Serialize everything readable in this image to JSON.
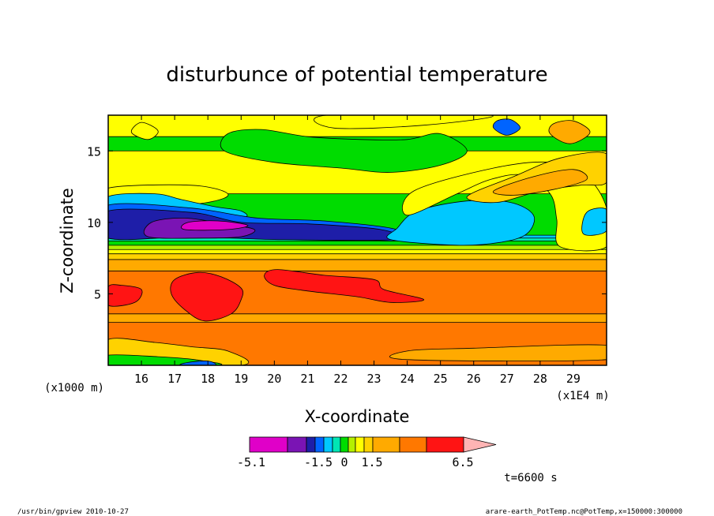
{
  "chart_data": {
    "type": "heatmap",
    "title": "disturbunce of potential temperature",
    "xlabel": "X-coordinate",
    "ylabel": "Z-coordinate",
    "x_unit": "(x1E4 m)",
    "y_unit": "(x1000 m)",
    "x_range": [
      15,
      30
    ],
    "y_range": [
      0,
      17.5
    ],
    "x_ticks": [
      "16",
      "17",
      "18",
      "19",
      "20",
      "21",
      "22",
      "23",
      "24",
      "25",
      "26",
      "27",
      "28",
      "29"
    ],
    "y_ticks": [
      "5",
      "10",
      "15"
    ],
    "colorbar": {
      "labels": [
        "-5.1",
        "-1.5",
        "0",
        "1.5",
        "6.5"
      ],
      "colors": [
        "#e000c8",
        "#7a14b4",
        "#1e1ea8",
        "#0064ff",
        "#00c8ff",
        "#00e6b4",
        "#00dc00",
        "#b4f000",
        "#ffff00",
        "#ffd200",
        "#ffaa00",
        "#ff7800",
        "#ff1414",
        "#ff7878",
        "#ffb4b4"
      ]
    },
    "time_label": "t=6600 s",
    "bands": [
      {
        "z": 0,
        "color": "#ff7800"
      },
      {
        "z": 3.0,
        "color": "#ffaa00"
      },
      {
        "z": 3.6,
        "color": "#ff7800"
      },
      {
        "z": 6.6,
        "color": "#ffaa00"
      },
      {
        "z": 7.4,
        "color": "#ffd200"
      },
      {
        "z": 7.8,
        "color": "#ffff00"
      },
      {
        "z": 8.1,
        "color": "#b4f000"
      },
      {
        "z": 8.4,
        "color": "#00dc00"
      },
      {
        "z": 8.7,
        "color": "#00e6b4"
      },
      {
        "z": 8.9,
        "color": "#00c8ff"
      },
      {
        "z": 9.1,
        "color": "#00dc00"
      },
      {
        "z": 12.0,
        "color": "#ffff00"
      },
      {
        "z": 15.0,
        "color": "#00dc00"
      },
      {
        "z": 16.0,
        "color": "#ffff00"
      }
    ],
    "regions": [
      {
        "name": "surface-yellow-layer",
        "color": "#ffd200",
        "pts": [
          [
            15,
            0
          ],
          [
            19,
            0
          ],
          [
            18.6,
            1.0
          ],
          [
            17.5,
            1.3
          ],
          [
            16.4,
            1.6
          ],
          [
            15,
            1.8
          ]
        ]
      },
      {
        "name": "surface-green-layer",
        "color": "#00dc00",
        "pts": [
          [
            15,
            0
          ],
          [
            18.3,
            0
          ],
          [
            17.6,
            0.4
          ],
          [
            16.5,
            0.6
          ],
          [
            15,
            0.7
          ]
        ]
      },
      {
        "name": "surface-blue-layer",
        "color": "#0064ff",
        "pts": [
          [
            17.2,
            0
          ],
          [
            18.2,
            0
          ],
          [
            18.0,
            0.3
          ],
          [
            17.4,
            0.2
          ]
        ]
      },
      {
        "name": "surface-orange-right",
        "color": "#ffaa00",
        "pts": [
          [
            24,
            0.4
          ],
          [
            30,
            0.4
          ],
          [
            30,
            1.4
          ],
          [
            26,
            1.2
          ],
          [
            24,
            1.0
          ]
        ]
      },
      {
        "name": "warm-core-left",
        "color": "#ff1414",
        "pts": [
          [
            15,
            4.2
          ],
          [
            15.8,
            4.4
          ],
          [
            16.0,
            5.3
          ],
          [
            15.4,
            5.6
          ],
          [
            15,
            5.5
          ]
        ]
      },
      {
        "name": "warm-core-center",
        "color": "#ff1414",
        "pts": [
          [
            17.9,
            3.1
          ],
          [
            18.7,
            3.6
          ],
          [
            19.0,
            4.6
          ],
          [
            19.0,
            5.4
          ],
          [
            18.4,
            6.2
          ],
          [
            17.7,
            6.5
          ],
          [
            17.0,
            6.0
          ],
          [
            16.9,
            5.0
          ],
          [
            17.3,
            3.9
          ]
        ]
      },
      {
        "name": "warm-core-east",
        "color": "#ff1414",
        "pts": [
          [
            20.1,
            6.7
          ],
          [
            21.5,
            6.3
          ],
          [
            23.0,
            6.0
          ],
          [
            23.3,
            5.3
          ],
          [
            24.5,
            4.6
          ],
          [
            23.5,
            4.4
          ],
          [
            22.5,
            4.8
          ],
          [
            21.0,
            5.2
          ],
          [
            20.0,
            5.6
          ],
          [
            19.7,
            6.3
          ]
        ]
      },
      {
        "name": "upper-yellow-west",
        "color": "#ffff00",
        "pts": [
          [
            15,
            11.2
          ],
          [
            16.2,
            11.0
          ],
          [
            18.0,
            11.4
          ],
          [
            18.6,
            12.0
          ],
          [
            17.5,
            12.6
          ],
          [
            15,
            12.4
          ]
        ]
      },
      {
        "name": "upper-cyan-west",
        "color": "#00c8ff",
        "pts": [
          [
            15,
            11.8
          ],
          [
            16.4,
            12.0
          ],
          [
            17.2,
            11.6
          ],
          [
            18.2,
            11.1
          ],
          [
            19.0,
            10.8
          ],
          [
            19.0,
            10.3
          ],
          [
            17.0,
            10.2
          ],
          [
            15,
            10.4
          ]
        ]
      },
      {
        "name": "upper-blue",
        "color": "#0064ff",
        "pts": [
          [
            15,
            9.2
          ],
          [
            17.5,
            9.3
          ],
          [
            20.5,
            9.0
          ],
          [
            23.5,
            8.7
          ],
          [
            24.0,
            9.0
          ],
          [
            23.5,
            9.6
          ],
          [
            21.5,
            10.1
          ],
          [
            19.5,
            10.3
          ],
          [
            17.5,
            11.0
          ],
          [
            15,
            11.2
          ]
        ]
      },
      {
        "name": "upper-darkblue",
        "color": "#1e1ea8",
        "pts": [
          [
            15,
            8.9
          ],
          [
            17.5,
            9.0
          ],
          [
            20.0,
            8.8
          ],
          [
            23.6,
            8.8
          ],
          [
            23.2,
            9.5
          ],
          [
            21.0,
            9.9
          ],
          [
            19.0,
            10.0
          ],
          [
            17.5,
            10.7
          ],
          [
            15,
            10.8
          ]
        ]
      },
      {
        "name": "purple-core",
        "color": "#7a14b4",
        "pts": [
          [
            16.2,
            9.0
          ],
          [
            17.8,
            8.9
          ],
          [
            19.0,
            9.0
          ],
          [
            19.4,
            9.5
          ],
          [
            18.5,
            9.9
          ],
          [
            17.3,
            10.3
          ],
          [
            16.3,
            10.0
          ]
        ]
      },
      {
        "name": "magenta-core",
        "color": "#e000c8",
        "pts": [
          [
            17.3,
            9.5
          ],
          [
            18.6,
            9.5
          ],
          [
            19.2,
            9.8
          ],
          [
            18.3,
            10.1
          ],
          [
            17.4,
            10.0
          ]
        ]
      },
      {
        "name": "upper-cyan-east",
        "color": "#00c8ff",
        "pts": [
          [
            23.5,
            8.8
          ],
          [
            25.5,
            8.4
          ],
          [
            26.8,
            8.6
          ],
          [
            27.6,
            9.2
          ],
          [
            27.8,
            10.5
          ],
          [
            27.1,
            11.4
          ],
          [
            25.8,
            11.5
          ],
          [
            24.3,
            10.8
          ],
          [
            23.7,
            9.6
          ]
        ]
      },
      {
        "name": "upper-yellow-east",
        "color": "#ffff00",
        "pts": [
          [
            24.0,
            10.5
          ],
          [
            25.5,
            12.0
          ],
          [
            26.5,
            13.0
          ],
          [
            27.5,
            13.3
          ],
          [
            28.3,
            12.0
          ],
          [
            28.5,
            10.2
          ],
          [
            28.6,
            8.3
          ],
          [
            30,
            8.3
          ],
          [
            30,
            11.0
          ],
          [
            29.4,
            13.2
          ],
          [
            28.3,
            14.2
          ],
          [
            26.6,
            13.8
          ],
          [
            24.2,
            12.2
          ]
        ]
      },
      {
        "name": "upper-cyan-far-east",
        "color": "#00c8ff",
        "pts": [
          [
            29.3,
            9.2
          ],
          [
            30,
            9.4
          ],
          [
            30,
            10.9
          ],
          [
            29.4,
            10.7
          ]
        ]
      },
      {
        "name": "upper-orange-east",
        "color": "#ffd200",
        "pts": [
          [
            25.8,
            11.8
          ],
          [
            27.2,
            13.2
          ],
          [
            28.6,
            14.5
          ],
          [
            30,
            14.8
          ],
          [
            30,
            12.8
          ],
          [
            29.2,
            12.6
          ],
          [
            28.0,
            12.2
          ],
          [
            26.7,
            11.4
          ]
        ]
      },
      {
        "name": "upper-orange-core",
        "color": "#ffaa00",
        "pts": [
          [
            26.6,
            12.2
          ],
          [
            27.8,
            13.2
          ],
          [
            29.0,
            13.7
          ],
          [
            29.4,
            13.0
          ],
          [
            28.4,
            12.3
          ],
          [
            27.2,
            11.9
          ]
        ]
      },
      {
        "name": "top-orange-blob",
        "color": "#ffaa00",
        "pts": [
          [
            28.3,
            16.2
          ],
          [
            28.9,
            15.5
          ],
          [
            29.5,
            16.3
          ],
          [
            29.0,
            17.1
          ],
          [
            28.4,
            16.9
          ]
        ]
      },
      {
        "name": "top-blue-blob",
        "color": "#0064ff",
        "pts": [
          [
            26.6,
            16.6
          ],
          [
            27.0,
            16.1
          ],
          [
            27.4,
            16.6
          ],
          [
            27.1,
            17.2
          ],
          [
            26.7,
            17.1
          ]
        ]
      },
      {
        "name": "top-green-patch",
        "color": "#00dc00",
        "pts": [
          [
            18.5,
            15.0
          ],
          [
            20.0,
            14.2
          ],
          [
            22.0,
            13.8
          ],
          [
            23.5,
            13.5
          ],
          [
            25.0,
            14.0
          ],
          [
            25.8,
            15.0
          ],
          [
            25.0,
            16.2
          ],
          [
            24.0,
            15.8
          ],
          [
            22.6,
            15.8
          ],
          [
            21.0,
            16.0
          ],
          [
            19.6,
            16.5
          ],
          [
            18.6,
            16.2
          ]
        ]
      },
      {
        "name": "top-yellow-right",
        "color": "#ffff00",
        "pts": [
          [
            21.8,
            16.6
          ],
          [
            24.5,
            16.8
          ],
          [
            26.5,
            17.5
          ],
          [
            21.6,
            17.5
          ]
        ]
      },
      {
        "name": "top-yellow-left",
        "color": "#ffff00",
        "pts": [
          [
            15.7,
            16.3
          ],
          [
            16.2,
            15.8
          ],
          [
            16.5,
            16.4
          ],
          [
            16.0,
            17.0
          ]
        ]
      }
    ]
  },
  "footer": {
    "left": "/usr/bin/gpview   2010-10-27",
    "right": "arare-earth_PotTemp.nc@PotTemp,x=150000:300000"
  }
}
